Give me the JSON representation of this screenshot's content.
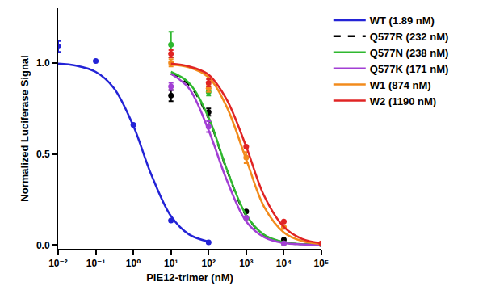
{
  "chart_data": {
    "type": "scatter",
    "x_label": "PIE12-trimer (nM)",
    "y_label": "Normalized Luciferase Signal",
    "log": "x",
    "grid": false,
    "legend": "right",
    "xlim": [
      0.01,
      100000
    ],
    "xticks": [
      {
        "value": 0.01,
        "label": "10⁻²"
      },
      {
        "value": 0.1,
        "label": "10⁻¹"
      },
      {
        "value": 1,
        "label": "10⁰"
      },
      {
        "value": 10,
        "label": "10¹"
      },
      {
        "value": 100,
        "label": "10²"
      },
      {
        "value": 1000,
        "label": "10³"
      },
      {
        "value": 10000,
        "label": "10⁴"
      },
      {
        "value": 100000,
        "label": "10⁵"
      }
    ],
    "ylim": [
      -0.02,
      1.3
    ],
    "yticks": [
      {
        "value": 0,
        "label": "0.0"
      },
      {
        "value": 0.5,
        "label": "0.5"
      },
      {
        "value": 1,
        "label": "1.0"
      }
    ],
    "series": [
      {
        "name": "WT (1.89 nM)",
        "color": "#2323d6",
        "line_style": "solid",
        "marker": "circle",
        "x": [
          0.01,
          0.1,
          1,
          10,
          100
        ],
        "values": [
          1.09,
          1.01,
          0.66,
          0.135,
          0.015
        ],
        "error": [
          0.03,
          0,
          0,
          0,
          0
        ],
        "curve_x": [
          0.01,
          0.03,
          0.1,
          0.3,
          1,
          3,
          10,
          30,
          100
        ],
        "curve_values": [
          0.995,
          0.984,
          0.95,
          0.863,
          0.654,
          0.386,
          0.159,
          0.059,
          0.019
        ]
      },
      {
        "name": "Q577R (232 nM)",
        "color": "#000000",
        "line_style": "dash",
        "marker": "circle",
        "x": [
          10,
          100,
          1000,
          10000,
          100000
        ],
        "values": [
          0.82,
          0.73,
          0.185,
          0.03,
          0.005
        ],
        "error": [
          0.03,
          0.02,
          0,
          0,
          0
        ],
        "curve_x": [
          10,
          30,
          100,
          300,
          1000,
          3000,
          10000,
          30000,
          100000
        ],
        "curve_values": [
          0.94,
          0.88,
          0.695,
          0.417,
          0.162,
          0.055,
          0.015,
          0.005,
          0.002
        ]
      },
      {
        "name": "Q577N (238 nM)",
        "color": "#2fb82f",
        "line_style": "solid",
        "marker": "circle",
        "x": [
          10,
          100,
          1000,
          10000,
          100000
        ],
        "values": [
          1.1,
          0.84,
          0.15,
          0.01,
          0.005
        ],
        "error": [
          0.07,
          0.02,
          0,
          0,
          0
        ],
        "curve_x": [
          10,
          30,
          100,
          300,
          1000,
          3000,
          10000,
          30000,
          100000
        ],
        "curve_values": [
          0.95,
          0.89,
          0.7,
          0.42,
          0.165,
          0.056,
          0.016,
          0.005,
          0.002
        ]
      },
      {
        "name": "Q577K (171 nM)",
        "color": "#a23fd4",
        "line_style": "solid",
        "marker": "circle",
        "x": [
          10,
          100,
          1000,
          10000,
          100000
        ],
        "values": [
          0.87,
          0.65,
          0.15,
          0.01,
          0.005
        ],
        "error": [
          0.02,
          0.03,
          0,
          0,
          0
        ],
        "curve_x": [
          10,
          30,
          100,
          300,
          1000,
          3000,
          10000,
          30000,
          100000
        ],
        "curve_values": [
          0.94,
          0.86,
          0.63,
          0.36,
          0.13,
          0.044,
          0.012,
          0.004,
          0.001
        ]
      },
      {
        "name": "W1 (874 nM)",
        "color": "#f28b1c",
        "line_style": "solid",
        "marker": "circle",
        "x": [
          10,
          100,
          1000,
          10000,
          100000
        ],
        "values": [
          1.0,
          0.86,
          0.48,
          0.1,
          0.01
        ],
        "error": [
          0.02,
          0.02,
          0.03,
          0,
          0
        ],
        "curve_x": [
          10,
          30,
          100,
          300,
          1000,
          3000,
          10000,
          30000,
          100000
        ],
        "curve_values": [
          0.99,
          0.975,
          0.92,
          0.76,
          0.47,
          0.21,
          0.07,
          0.023,
          0.007
        ]
      },
      {
        "name": "W2 (1190 nM)",
        "color": "#e02424",
        "line_style": "solid",
        "marker": "circle",
        "x": [
          10,
          100,
          1000,
          10000,
          100000
        ],
        "values": [
          1.05,
          0.89,
          0.54,
          0.13,
          0.01
        ],
        "error": [
          0.02,
          0.02,
          0,
          0,
          0
        ],
        "curve_x": [
          10,
          30,
          100,
          300,
          1000,
          3000,
          10000,
          30000,
          100000
        ],
        "curve_values": [
          0.995,
          0.98,
          0.935,
          0.8,
          0.54,
          0.27,
          0.1,
          0.035,
          0.011
        ]
      }
    ]
  }
}
